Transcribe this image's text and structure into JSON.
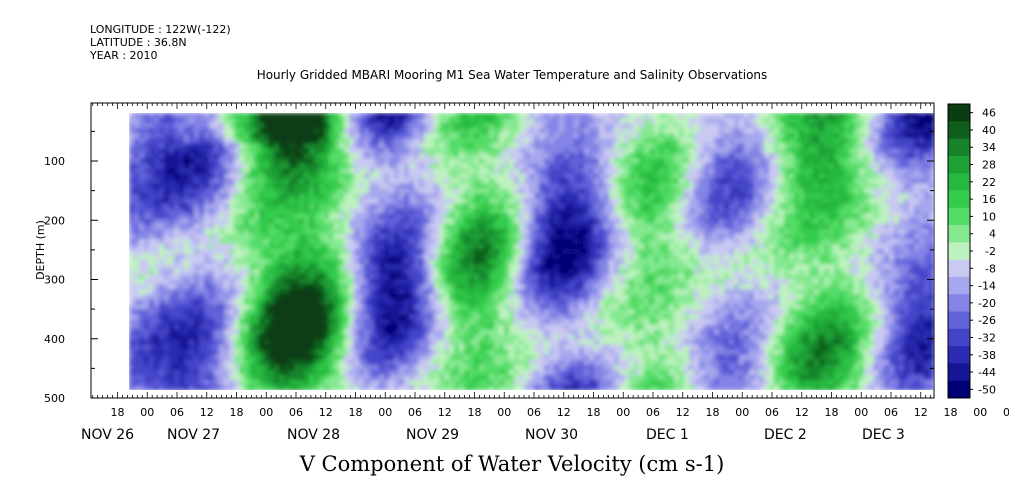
{
  "header": {
    "longitude": "LONGITUDE : 122W(-122)",
    "latitude": "LATITUDE : 36.8N",
    "year": "YEAR : 2010"
  },
  "chart_data": {
    "type": "heatmap",
    "title": "Hourly Gridded MBARI Mooring M1 Sea Water Temperature and Salinity Observations",
    "xlabel": "V Component of Water Velocity (cm s-1)",
    "ylabel": "DEPTH (m)",
    "y_ticks": [
      100,
      200,
      300,
      400,
      500
    ],
    "y_range": [
      0,
      500
    ],
    "x_hour_labels": [
      "18",
      "00",
      "06",
      "12",
      "18",
      "00",
      "06",
      "12",
      "18",
      "00",
      "06",
      "12",
      "18",
      "00",
      "06",
      "12",
      "18",
      "00",
      "06",
      "12",
      "18",
      "00",
      "06",
      "12",
      "18",
      "00",
      "06",
      "12",
      "18",
      "00",
      "06",
      "12"
    ],
    "x_date_labels": [
      "NOV 26",
      "NOV 27",
      "NOV 28",
      "NOV 29",
      "NOV 30",
      "DEC  1",
      "DEC  2",
      "DEC  3"
    ],
    "colorbar_labels": [
      "46",
      "40",
      "34",
      "28",
      "22",
      "16",
      "10",
      "4",
      "-2",
      "-8",
      "-14",
      "-20",
      "-26",
      "-32",
      "-38",
      "-44",
      "-50"
    ],
    "colorbar_colors": [
      "#0b3d12",
      "#0f5e1c",
      "#17822a",
      "#1fa035",
      "#27b83f",
      "#34cc4d",
      "#55dc67",
      "#86e992",
      "#bdf2bf",
      "#c9c9f2",
      "#a7a7ee",
      "#8484e6",
      "#6262da",
      "#4444c9",
      "#2a2ab2",
      "#151596",
      "#000075"
    ],
    "field_range": [
      -50,
      50
    ]
  }
}
